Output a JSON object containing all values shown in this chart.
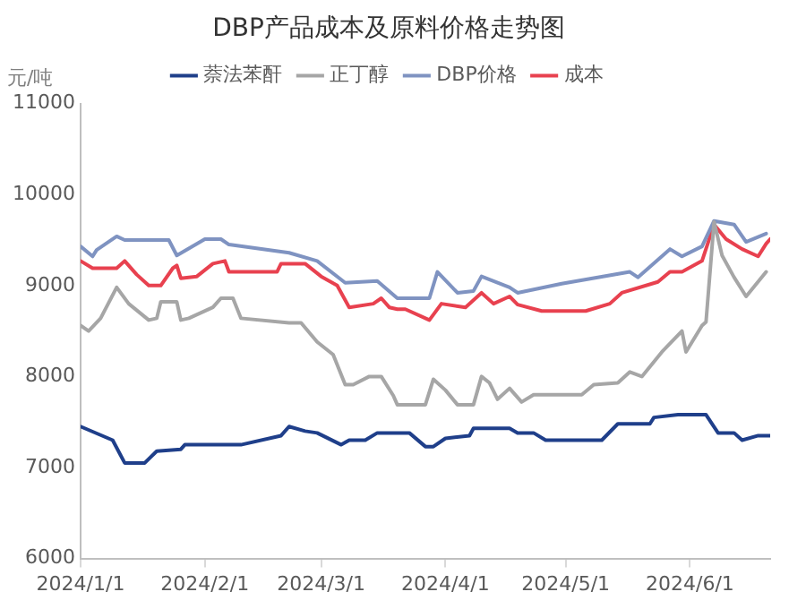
{
  "chart_data": {
    "type": "line",
    "title": "DBP产品成本及原料价格走势图",
    "ylabel": "元/吨",
    "legend": "top",
    "grid": false,
    "marker": "none",
    "line_style": "solid",
    "xlim": [
      "2024-01-01",
      "2024-06-21"
    ],
    "xticks": [
      {
        "value": "2024-01-01",
        "label": "2024/1/1"
      },
      {
        "value": "2024-02-01",
        "label": "2024/2/1"
      },
      {
        "value": "2024-03-01",
        "label": "2024/3/1"
      },
      {
        "value": "2024-04-01",
        "label": "2024/4/1"
      },
      {
        "value": "2024-05-01",
        "label": "2024/5/1"
      },
      {
        "value": "2024-06-01",
        "label": "2024/6/1"
      }
    ],
    "ylim": [
      6000,
      11000
    ],
    "yticks": [
      6000,
      7000,
      8000,
      9000,
      10000,
      11000
    ],
    "series": [
      {
        "name": "萘法苯酐",
        "color": "#1f3f8a",
        "x": [
          "2024-01-01",
          "2024-01-09",
          "2024-01-12",
          "2024-01-17",
          "2024-01-20",
          "2024-01-26",
          "2024-01-27",
          "2024-02-10",
          "2024-02-20",
          "2024-02-22",
          "2024-02-26",
          "2024-02-29",
          "2024-03-06",
          "2024-03-08",
          "2024-03-12",
          "2024-03-15",
          "2024-03-23",
          "2024-03-27",
          "2024-03-29",
          "2024-04-01",
          "2024-04-07",
          "2024-04-08",
          "2024-04-17",
          "2024-04-19",
          "2024-04-23",
          "2024-04-26",
          "2024-05-10",
          "2024-05-14",
          "2024-05-22",
          "2024-05-23",
          "2024-05-29",
          "2024-06-05",
          "2024-06-08",
          "2024-06-12",
          "2024-06-14",
          "2024-06-18",
          "2024-06-21"
        ],
        "values": [
          7450,
          7300,
          7050,
          7050,
          7180,
          7200,
          7250,
          7250,
          7350,
          7450,
          7400,
          7380,
          7250,
          7300,
          7300,
          7380,
          7380,
          7230,
          7230,
          7320,
          7350,
          7430,
          7430,
          7380,
          7380,
          7300,
          7300,
          7480,
          7480,
          7550,
          7580,
          7580,
          7380,
          7380,
          7300,
          7350,
          7350
        ]
      },
      {
        "name": "正丁醇",
        "color": "#a6a6a6",
        "x": [
          "2024-01-01",
          "2024-01-03",
          "2024-01-06",
          "2024-01-10",
          "2024-01-13",
          "2024-01-18",
          "2024-01-20",
          "2024-01-21",
          "2024-01-25",
          "2024-01-26",
          "2024-01-28",
          "2024-02-03",
          "2024-02-05",
          "2024-02-08",
          "2024-02-10",
          "2024-02-22",
          "2024-02-25",
          "2024-02-29",
          "2024-03-04",
          "2024-03-07",
          "2024-03-09",
          "2024-03-13",
          "2024-03-16",
          "2024-03-19",
          "2024-03-20",
          "2024-03-27",
          "2024-03-29",
          "2024-04-01",
          "2024-04-04",
          "2024-04-08",
          "2024-04-10",
          "2024-04-12",
          "2024-04-14",
          "2024-04-17",
          "2024-04-20",
          "2024-04-23",
          "2024-05-05",
          "2024-05-08",
          "2024-05-14",
          "2024-05-17",
          "2024-05-20",
          "2024-05-25",
          "2024-05-30",
          "2024-05-31",
          "2024-06-04",
          "2024-06-05",
          "2024-06-07",
          "2024-06-09",
          "2024-06-12",
          "2024-06-15",
          "2024-06-20"
        ],
        "values": [
          8560,
          8500,
          8640,
          8980,
          8800,
          8620,
          8640,
          8820,
          8820,
          8620,
          8640,
          8760,
          8860,
          8860,
          8640,
          8590,
          8590,
          8380,
          8240,
          7910,
          7910,
          8000,
          8000,
          7790,
          7690,
          7690,
          7970,
          7850,
          7690,
          7690,
          8000,
          7930,
          7750,
          7870,
          7720,
          7800,
          7800,
          7910,
          7930,
          8050,
          8000,
          8270,
          8500,
          8270,
          8560,
          8600,
          9700,
          9330,
          9090,
          8880,
          9150
        ]
      },
      {
        "name": "DBP价格",
        "color": "#7f93c1",
        "x": [
          "2024-01-01",
          "2024-01-04",
          "2024-01-05",
          "2024-01-10",
          "2024-01-12",
          "2024-01-23",
          "2024-01-25",
          "2024-02-01",
          "2024-02-05",
          "2024-02-07",
          "2024-02-22",
          "2024-02-29",
          "2024-03-07",
          "2024-03-15",
          "2024-03-20",
          "2024-03-22",
          "2024-03-28",
          "2024-03-30",
          "2024-04-04",
          "2024-04-08",
          "2024-04-10",
          "2024-04-17",
          "2024-04-19",
          "2024-04-30",
          "2024-05-09",
          "2024-05-17",
          "2024-05-19",
          "2024-05-27",
          "2024-05-30",
          "2024-06-04",
          "2024-06-07",
          "2024-06-12",
          "2024-06-15",
          "2024-06-20"
        ],
        "values": [
          9430,
          9320,
          9390,
          9540,
          9500,
          9500,
          9330,
          9510,
          9510,
          9450,
          9360,
          9270,
          9030,
          9050,
          8860,
          8860,
          8860,
          9150,
          8920,
          8940,
          9100,
          8980,
          8920,
          9020,
          9090,
          9150,
          9090,
          9400,
          9320,
          9430,
          9710,
          9670,
          9480,
          9570
        ]
      },
      {
        "name": "成本",
        "color": "#e8414f",
        "x": [
          "2024-01-01",
          "2024-01-04",
          "2024-01-10",
          "2024-01-12",
          "2024-01-15",
          "2024-01-18",
          "2024-01-21",
          "2024-01-24",
          "2024-01-25",
          "2024-01-26",
          "2024-01-30",
          "2024-02-03",
          "2024-02-06",
          "2024-02-07",
          "2024-02-19",
          "2024-02-20",
          "2024-02-26",
          "2024-03-01",
          "2024-03-05",
          "2024-03-08",
          "2024-03-14",
          "2024-03-16",
          "2024-03-18",
          "2024-03-20",
          "2024-03-22",
          "2024-03-28",
          "2024-03-31",
          "2024-04-06",
          "2024-04-10",
          "2024-04-13",
          "2024-04-17",
          "2024-04-19",
          "2024-04-25",
          "2024-05-06",
          "2024-05-12",
          "2024-05-15",
          "2024-05-24",
          "2024-05-27",
          "2024-05-30",
          "2024-06-04",
          "2024-06-07",
          "2024-06-10",
          "2024-06-14",
          "2024-06-18",
          "2024-06-20",
          "2024-06-21"
        ],
        "values": [
          9270,
          9190,
          9190,
          9270,
          9120,
          9000,
          9000,
          9190,
          9220,
          9080,
          9100,
          9240,
          9270,
          9150,
          9150,
          9240,
          9240,
          9100,
          9000,
          8760,
          8800,
          8860,
          8760,
          8740,
          8740,
          8620,
          8800,
          8760,
          8920,
          8800,
          8880,
          8790,
          8720,
          8720,
          8800,
          8920,
          9040,
          9150,
          9150,
          9270,
          9670,
          9510,
          9400,
          9320,
          9460,
          9510
        ]
      }
    ]
  }
}
